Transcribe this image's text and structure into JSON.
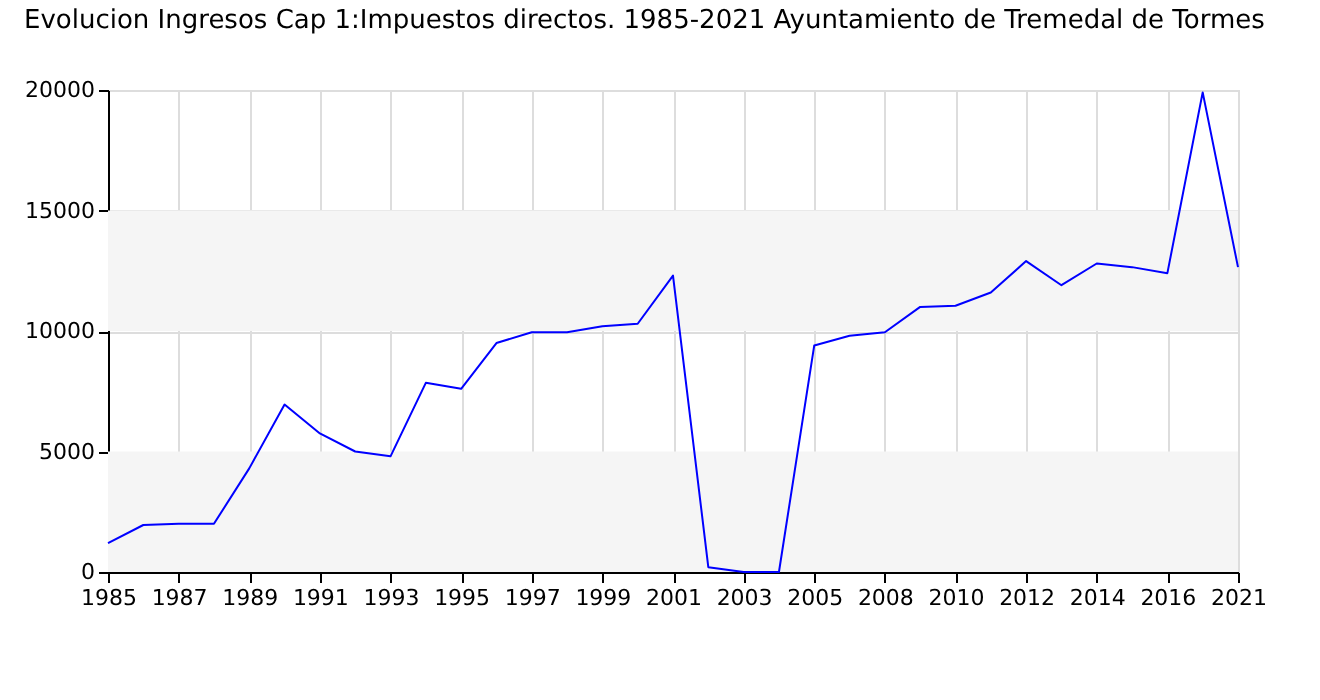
{
  "chart_data": {
    "type": "line",
    "title": "Evolucion Ingresos Cap 1:Impuestos directos. 1985-2021 Ayuntamiento de Tremedal de Tormes",
    "categories": [
      "1985",
      null,
      "1987",
      null,
      "1989",
      null,
      "1991",
      null,
      "1993",
      null,
      "1995",
      null,
      "1997",
      null,
      "1999",
      null,
      "2001",
      null,
      "2003",
      null,
      "2005",
      null,
      "2008",
      null,
      "2010",
      null,
      "2012",
      null,
      "2014",
      null,
      "2016",
      null,
      "2021"
    ],
    "series": [
      {
        "color": "#0000ff",
        "values": [
          1200,
          1950,
          2000,
          2000,
          4300,
          6950,
          5750,
          5000,
          4800,
          7850,
          7600,
          9500,
          9950,
          9950,
          10200,
          10300,
          12300,
          200,
          0,
          0,
          9400,
          9800,
          9950,
          11000,
          11050,
          11600,
          12900,
          11900,
          12800,
          12650,
          12400,
          19900,
          12650
        ]
      }
    ],
    "ylim": [
      0,
      20000
    ],
    "yticks": [
      0,
      5000,
      10000,
      15000,
      20000
    ],
    "grid": true,
    "marker": "none",
    "line_style": "solid",
    "bands": [
      {
        "axis": "y",
        "from": 0,
        "to": 5000,
        "color": "#f5f5f5"
      },
      {
        "axis": "y",
        "from": 10000,
        "to": 15000,
        "color": "#f5f5f5"
      }
    ]
  }
}
